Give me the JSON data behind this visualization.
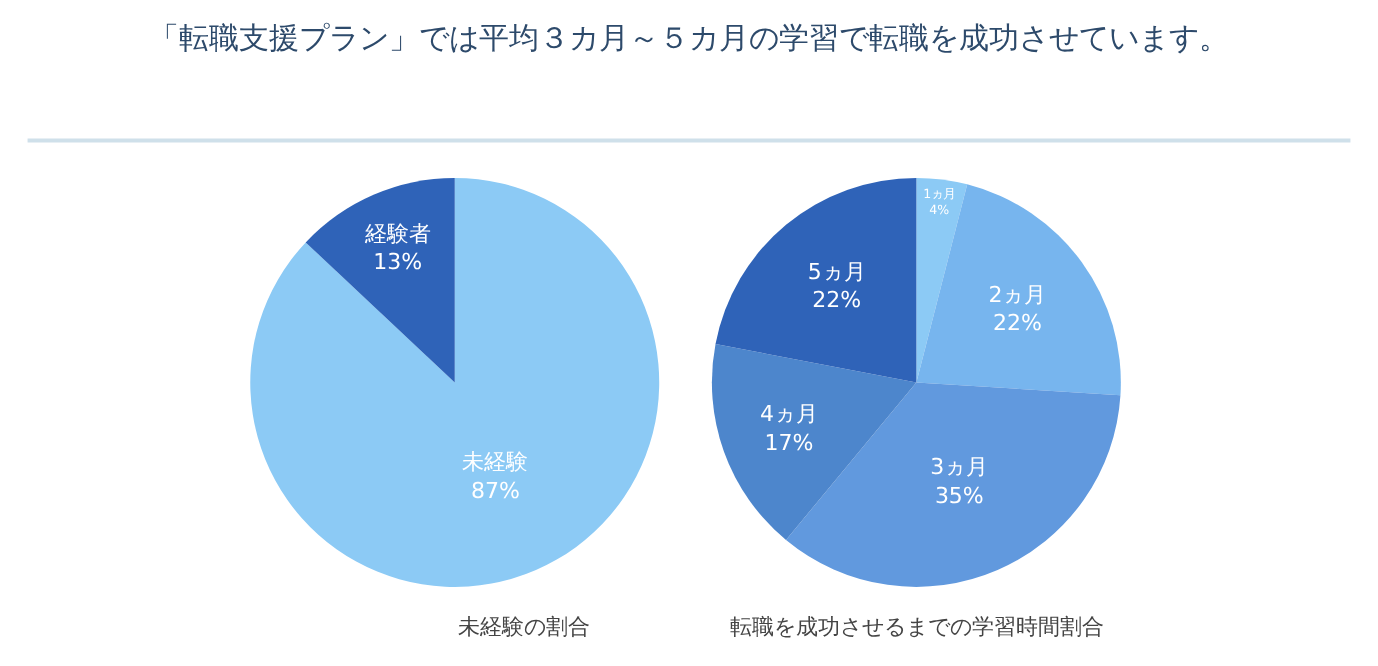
{
  "chart_data": [
    {
      "type": "pie",
      "title": "「転職支援プラン」では平均３カ月～５カ月の学習で転職を成功させています。",
      "xlabel": "未経験の割合",
      "categories": [
        "未経験",
        "経験者"
      ],
      "values": [
        87,
        13
      ],
      "value_labels": [
        "87%",
        "13%"
      ],
      "colors": [
        "#8ccaf5",
        "#2f63b8"
      ],
      "legend": false
    },
    {
      "type": "pie",
      "xlabel": "転職を成功させるまでの学習時間割合",
      "categories": [
        "1ヵ月",
        "2ヵ月",
        "3ヵ月",
        "4ヵ月",
        "5ヵ月"
      ],
      "values": [
        4,
        22,
        35,
        17,
        22
      ],
      "value_labels": [
        "4%",
        "22%",
        "35%",
        "17%",
        "22%"
      ],
      "colors": [
        "#8ccaf5",
        "#77b5ee",
        "#6199de",
        "#4d86cc",
        "#2f63b8"
      ],
      "legend": false
    }
  ]
}
